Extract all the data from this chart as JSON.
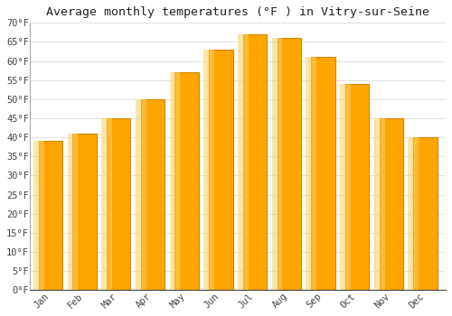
{
  "title": "Average monthly temperatures (°F ) in Vitry-sur-Seine",
  "months": [
    "Jan",
    "Feb",
    "Mar",
    "Apr",
    "May",
    "Jun",
    "Jul",
    "Aug",
    "Sep",
    "Oct",
    "Nov",
    "Dec"
  ],
  "values": [
    39,
    41,
    45,
    50,
    57,
    63,
    67,
    66,
    61,
    54,
    45,
    40
  ],
  "bar_color": "#FFA500",
  "bar_edge_color": "#CC8800",
  "ylim": [
    0,
    70
  ],
  "yticks": [
    0,
    5,
    10,
    15,
    20,
    25,
    30,
    35,
    40,
    45,
    50,
    55,
    60,
    65,
    70
  ],
  "background_color": "#ffffff",
  "plot_bg_color": "#ffffff",
  "grid_color": "#dddddd",
  "title_fontsize": 9.5,
  "tick_fontsize": 7.5,
  "font_family": "monospace"
}
